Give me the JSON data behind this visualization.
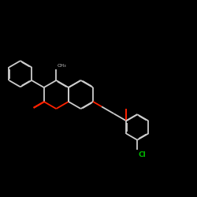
{
  "bg_color": "#000000",
  "bond_color": "#CCCCCC",
  "oxygen_color": "#FF2200",
  "chlorine_color": "#00BB00",
  "lw": 1.3,
  "dg": 0.018,
  "xlim": [
    0,
    10
  ],
  "ylim": [
    0,
    10
  ],
  "figsize": [
    2.5,
    2.5
  ],
  "dpi": 100
}
